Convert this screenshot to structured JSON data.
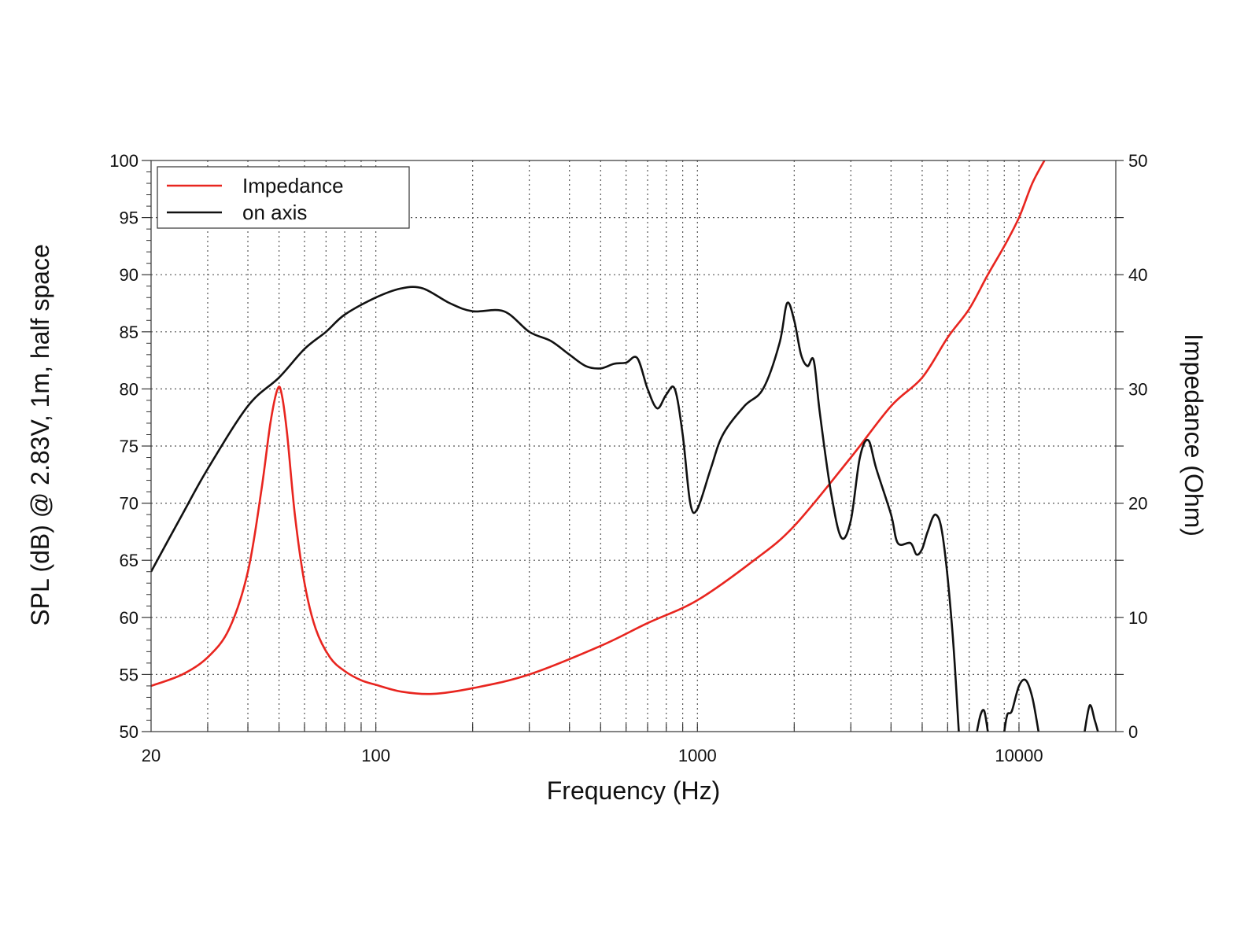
{
  "chart_data": {
    "type": "line",
    "title": "",
    "xlabel": "Frequency (Hz)",
    "ylabel": "SPL (dB) @ 2.83V, 1m, half space",
    "y2label": "Impedance (Ohm)",
    "xscale": "log",
    "xlim": [
      20,
      20000
    ],
    "ylim": [
      50,
      100
    ],
    "y2lim": [
      0,
      50
    ],
    "xticks": [
      20,
      100,
      1000,
      10000
    ],
    "xtick_labels": [
      "20",
      "100",
      "1000",
      "10000"
    ],
    "yticks": [
      50,
      55,
      60,
      65,
      70,
      75,
      80,
      85,
      90,
      95,
      100
    ],
    "yticks_right": [
      0,
      10,
      20,
      30,
      40,
      50
    ],
    "grid": true,
    "legend_position": "top-left",
    "series": [
      {
        "name": "Impedance",
        "axis": "right",
        "color": "#e8251f",
        "points": [
          [
            20,
            4
          ],
          [
            25,
            5
          ],
          [
            30,
            6.5
          ],
          [
            35,
            9
          ],
          [
            40,
            14
          ],
          [
            44,
            21
          ],
          [
            47,
            27
          ],
          [
            49.5,
            30
          ],
          [
            51,
            29.5
          ],
          [
            53,
            26
          ],
          [
            56,
            19
          ],
          [
            60,
            13
          ],
          [
            65,
            9
          ],
          [
            72,
            6.5
          ],
          [
            80,
            5.3
          ],
          [
            90,
            4.5
          ],
          [
            100,
            4.1
          ],
          [
            120,
            3.5
          ],
          [
            150,
            3.3
          ],
          [
            200,
            3.8
          ],
          [
            300,
            5
          ],
          [
            500,
            7.5
          ],
          [
            700,
            9.5
          ],
          [
            1000,
            11.5
          ],
          [
            1500,
            15
          ],
          [
            2000,
            18
          ],
          [
            3000,
            24
          ],
          [
            4000,
            28.5
          ],
          [
            5000,
            31
          ],
          [
            6000,
            34.5
          ],
          [
            7000,
            37
          ],
          [
            8000,
            40
          ],
          [
            9000,
            42.5
          ],
          [
            10000,
            45
          ],
          [
            11000,
            48
          ],
          [
            12000,
            50
          ]
        ]
      },
      {
        "name": "on axis",
        "axis": "left",
        "color": "#111111",
        "points": [
          [
            20,
            64
          ],
          [
            25,
            69
          ],
          [
            30,
            73
          ],
          [
            40,
            78.5
          ],
          [
            50,
            81
          ],
          [
            60,
            83.5
          ],
          [
            70,
            85
          ],
          [
            80,
            86.5
          ],
          [
            100,
            88
          ],
          [
            120,
            88.8
          ],
          [
            140,
            88.8
          ],
          [
            170,
            87.5
          ],
          [
            200,
            86.8
          ],
          [
            250,
            86.8
          ],
          [
            300,
            85
          ],
          [
            350,
            84.2
          ],
          [
            400,
            83
          ],
          [
            450,
            82
          ],
          [
            500,
            81.8
          ],
          [
            550,
            82.2
          ],
          [
            600,
            82.3
          ],
          [
            650,
            82.7
          ],
          [
            700,
            80
          ],
          [
            750,
            78.3
          ],
          [
            800,
            79.5
          ],
          [
            850,
            80
          ],
          [
            900,
            76
          ],
          [
            950,
            70
          ],
          [
            1000,
            69.5
          ],
          [
            1100,
            73
          ],
          [
            1200,
            76
          ],
          [
            1400,
            78.5
          ],
          [
            1600,
            80
          ],
          [
            1800,
            84
          ],
          [
            1900,
            87.5
          ],
          [
            2000,
            86
          ],
          [
            2100,
            83
          ],
          [
            2200,
            82
          ],
          [
            2300,
            82.5
          ],
          [
            2400,
            78
          ],
          [
            2600,
            71
          ],
          [
            2800,
            67
          ],
          [
            3000,
            68.5
          ],
          [
            3200,
            74
          ],
          [
            3400,
            75.5
          ],
          [
            3600,
            73
          ],
          [
            4000,
            69
          ],
          [
            4200,
            66.5
          ],
          [
            4600,
            66.5
          ],
          [
            4800,
            65.5
          ],
          [
            5000,
            66
          ],
          [
            5200,
            67.5
          ],
          [
            5500,
            69
          ],
          [
            5800,
            67
          ],
          [
            6200,
            59
          ],
          [
            6500,
            50
          ]
        ]
      },
      {
        "name": "",
        "axis": "left",
        "color": "#111111",
        "points": [
          [
            7400,
            50
          ],
          [
            7600,
            51.5
          ],
          [
            7800,
            51.8
          ],
          [
            8000,
            50
          ]
        ]
      },
      {
        "name": "",
        "axis": "left",
        "color": "#111111",
        "points": [
          [
            9000,
            50
          ],
          [
            9200,
            51.5
          ],
          [
            9500,
            51.8
          ],
          [
            10000,
            54
          ],
          [
            10500,
            54.5
          ],
          [
            11000,
            53
          ],
          [
            11500,
            50
          ]
        ]
      },
      {
        "name": "",
        "axis": "left",
        "color": "#111111",
        "points": [
          [
            16000,
            50
          ],
          [
            16600,
            52.3
          ],
          [
            17200,
            51
          ],
          [
            17600,
            50
          ]
        ]
      }
    ]
  }
}
